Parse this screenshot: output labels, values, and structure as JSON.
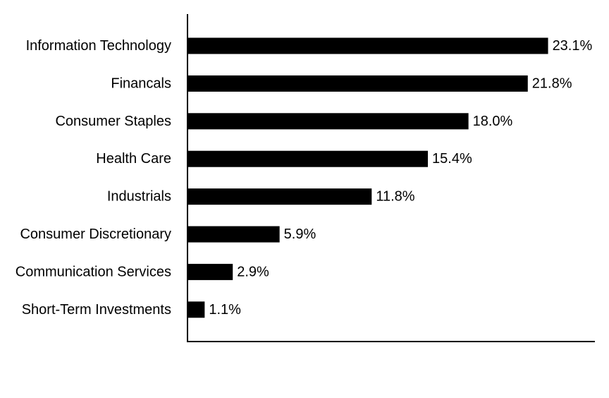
{
  "chart_data": {
    "type": "bar",
    "orientation": "horizontal",
    "categories": [
      "Information Technology",
      "Financals",
      "Consumer Staples",
      "Health Care",
      "Industrials",
      "Consumer Discretionary",
      "Communication Services",
      "Short-Term Investments"
    ],
    "values": [
      23.1,
      21.8,
      18.0,
      15.4,
      11.8,
      5.9,
      2.9,
      1.1
    ],
    "value_labels": [
      "23.1%",
      "21.8%",
      "18.0%",
      "15.4%",
      "11.8%",
      "5.9%",
      "2.9%",
      "1.1%"
    ],
    "xlim": [
      0,
      26.1
    ],
    "grid": false,
    "legend": "none",
    "bar_color": "#000000"
  }
}
